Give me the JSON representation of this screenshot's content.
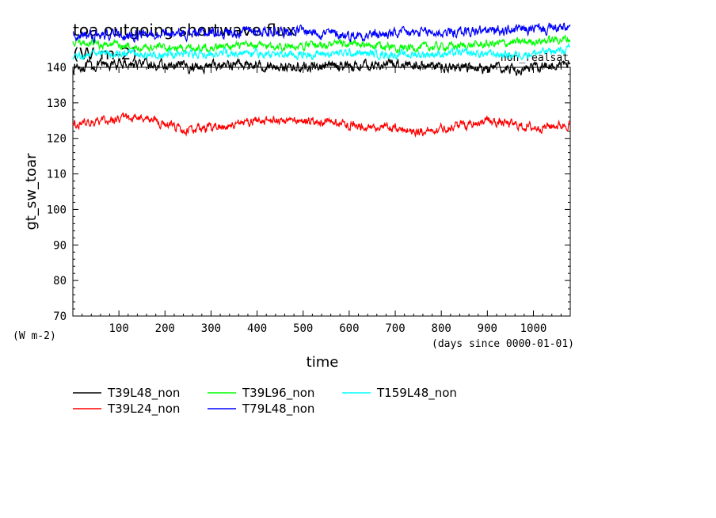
{
  "chart_data": {
    "type": "line",
    "title": "toa outgoing shortwave flux",
    "title_units": "(W m-2)",
    "subtitle_right": "non_realsat",
    "xlabel": "time",
    "x_units": "(days since 0000-01-01)",
    "ylabel": "gt_sw_toar",
    "y_units": "(W m-2)",
    "xlim": [
      0,
      1080
    ],
    "ylim": [
      70,
      140
    ],
    "x_ticks": [
      100,
      200,
      300,
      400,
      500,
      600,
      700,
      800,
      900,
      1000
    ],
    "y_ticks": [
      70,
      80,
      90,
      100,
      110,
      120,
      130,
      140
    ],
    "grid": false,
    "legend_position": "bottom",
    "series": [
      {
        "name": "T39L48_non",
        "color": "#000000",
        "mean": 140.5,
        "amplitude": 1.3,
        "x": [
          0,
          120,
          240,
          360,
          480,
          600,
          720,
          840,
          960,
          1080
        ],
        "values": [
          140,
          141,
          140,
          141,
          140,
          140.5,
          141,
          140,
          139.5,
          141
        ]
      },
      {
        "name": "T39L24_non",
        "color": "#ff0000",
        "mean": 124,
        "amplitude": 1.2,
        "x": [
          0,
          150,
          250,
          400,
          500,
          600,
          760,
          900,
          1000,
          1080
        ],
        "values": [
          124,
          126,
          122,
          125,
          125,
          124,
          122,
          125,
          123,
          124
        ]
      },
      {
        "name": "T39L96_non",
        "color": "#00ff00",
        "mean": 146.3,
        "amplitude": 1.1,
        "x": [
          0,
          120,
          240,
          360,
          480,
          600,
          720,
          840,
          960,
          1080
        ],
        "values": [
          147,
          146,
          145.5,
          146,
          146,
          146.5,
          145.5,
          146,
          147,
          148
        ]
      },
      {
        "name": "T79L48_non",
        "color": "#0000ff",
        "mean": 149.5,
        "amplitude": 1.4,
        "x": [
          0,
          120,
          240,
          360,
          480,
          600,
          720,
          840,
          960,
          1080
        ],
        "values": [
          149,
          149,
          149.5,
          150,
          150.5,
          149,
          149.5,
          150,
          150.5,
          151
        ]
      },
      {
        "name": "T159L48_non",
        "color": "#00ffff",
        "mean": 143.8,
        "amplitude": 1.1,
        "x": [
          0,
          120,
          240,
          360,
          480,
          600,
          720,
          840,
          960,
          1080
        ],
        "values": [
          143,
          144,
          143.5,
          144,
          143.5,
          144,
          143.5,
          144,
          143.5,
          145
        ]
      }
    ]
  }
}
